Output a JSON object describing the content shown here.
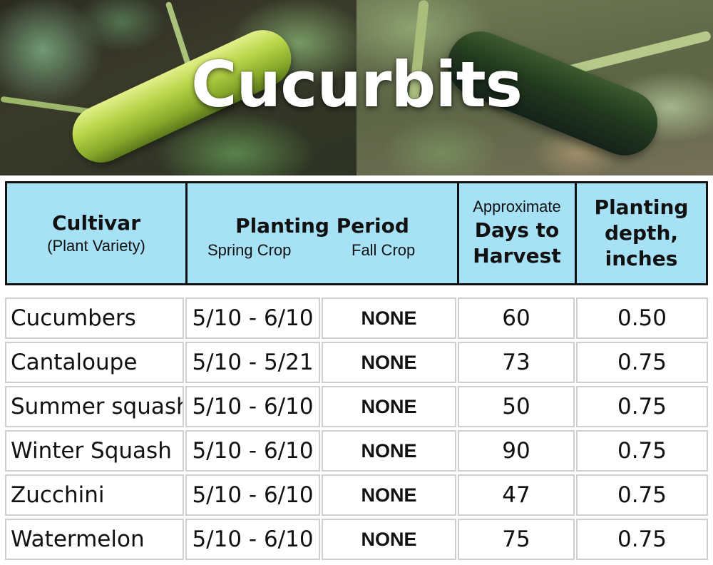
{
  "banner": {
    "title": "Cucurbits"
  },
  "table": {
    "headers": {
      "cultivar": "Cultivar",
      "cultivar_sub": "(Plant Variety)",
      "planting_period": "Planting Period",
      "spring_crop": "Spring Crop",
      "fall_crop": "Fall Crop",
      "days_line1": "Approximate",
      "days_line2": "Days to",
      "days_line3": "Harvest",
      "depth_line1": "Planting",
      "depth_line2": "depth,",
      "depth_line3": "inches"
    },
    "rows": [
      {
        "cultivar": "Cucumbers",
        "spring": "5/10 - 6/10",
        "fall": "NONE",
        "days": "60",
        "depth": "0.50"
      },
      {
        "cultivar": "Cantaloupe",
        "spring": "5/10 - 5/21",
        "fall": "NONE",
        "days": "73",
        "depth": "0.75"
      },
      {
        "cultivar": "Summer squash",
        "spring": "5/10 - 6/10",
        "fall": "NONE",
        "days": "50",
        "depth": "0.75"
      },
      {
        "cultivar": "Winter Squash",
        "spring": "5/10 - 6/10",
        "fall": "NONE",
        "days": "90",
        "depth": "0.75"
      },
      {
        "cultivar": "Zucchini",
        "spring": "5/10 - 6/10",
        "fall": "NONE",
        "days": "47",
        "depth": "0.75"
      },
      {
        "cultivar": "Watermelon",
        "spring": "5/10 - 6/10",
        "fall": "NONE",
        "days": "75",
        "depth": "0.75"
      }
    ]
  },
  "colors": {
    "header_bg": "#a6e1f6",
    "header_border": "#111111",
    "cell_border": "#cfcfcf",
    "title_text": "#ffffff"
  }
}
